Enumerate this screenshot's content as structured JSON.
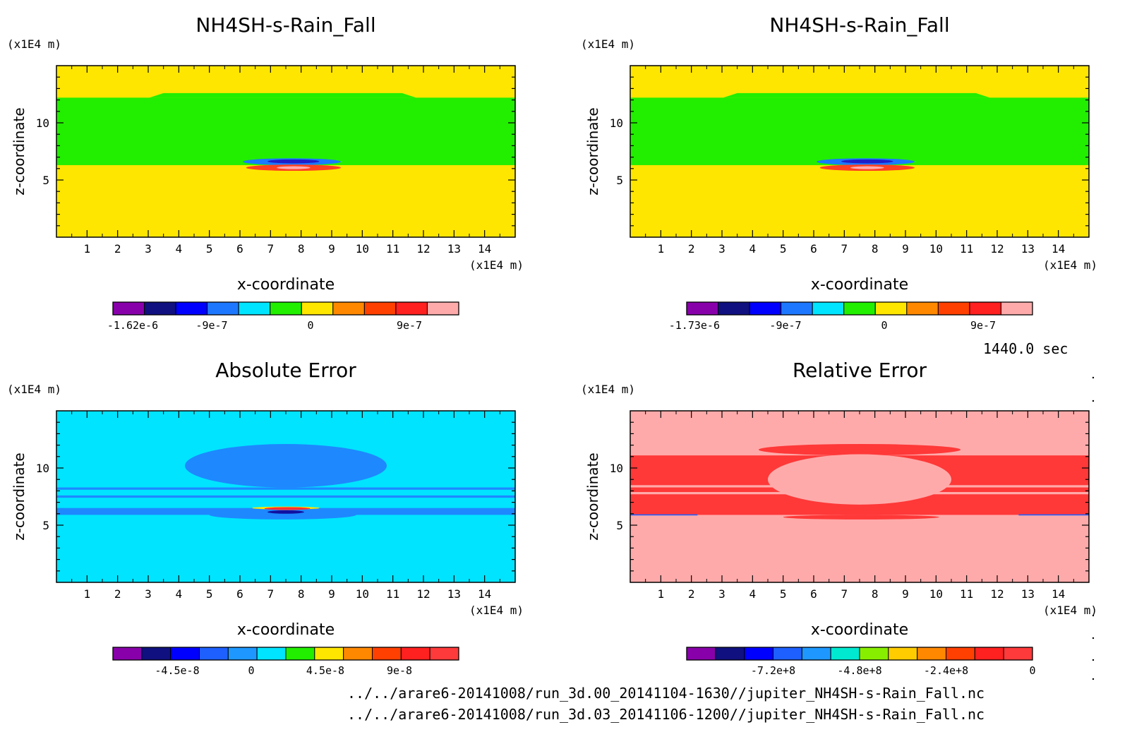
{
  "time_label": "1440.0 sec",
  "files": [
    "../../arare6-20141008/run_3d.00_20141104-1630//jupiter_NH4SH-s-Rain_Fall.nc",
    "../../arare6-20141008/run_3d.03_20141106-1200//jupiter_NH4SH-s-Rain_Fall.nc"
  ],
  "chart_data": [
    {
      "type": "heatmap",
      "title": "NH4SH-s-Rain_Fall",
      "xlabel": "x-coordinate",
      "ylabel": "z-coordinate",
      "x_unit": "(x1E4 m)",
      "y_unit": "(x1E4 m)",
      "xlim": [
        0,
        15
      ],
      "ylim": [
        0,
        15
      ],
      "x_ticks": [
        1,
        2,
        3,
        4,
        5,
        6,
        7,
        8,
        9,
        10,
        11,
        12,
        13,
        14
      ],
      "y_ticks": [
        5,
        10
      ],
      "background": "#ffe600",
      "regions": [
        {
          "kind": "band",
          "color": "#22ee00",
          "x": [
            0,
            15
          ],
          "y": [
            6.3,
            12.2
          ],
          "top_bump": {
            "x": [
              3.5,
              11.3
            ],
            "y": 12.6
          }
        },
        {
          "kind": "blob",
          "color": "#1a7aff",
          "x": [
            6.1,
            9.3
          ],
          "y": [
            6.3,
            6.9
          ]
        },
        {
          "kind": "blob",
          "color": "#1e1ec8",
          "x": [
            6.9,
            8.6
          ],
          "y": [
            6.45,
            6.8
          ]
        },
        {
          "kind": "blob",
          "color": "#ff4020",
          "x": [
            6.2,
            9.3
          ],
          "y": [
            5.8,
            6.35
          ]
        },
        {
          "kind": "blob",
          "color": "#ffaaaa",
          "x": [
            7.2,
            8.3
          ],
          "y": [
            5.95,
            6.2
          ]
        }
      ],
      "colorbar": {
        "colors": [
          "#8800aa",
          "#101080",
          "#0000ff",
          "#1e78ff",
          "#00e4ff",
          "#22ee00",
          "#ffe600",
          "#ff8800",
          "#ff4000",
          "#ff2020",
          "#ffaaaa"
        ],
        "labels": [
          "-1.62e-6",
          "-9e-7",
          "0",
          "9e-7"
        ],
        "label_values": [
          -1.62e-06,
          -9e-07,
          0,
          9e-07
        ],
        "vmin": -1.8e-06,
        "vmax": 1.35e-06
      }
    },
    {
      "type": "heatmap",
      "title": "NH4SH-s-Rain_Fall",
      "xlabel": "x-coordinate",
      "ylabel": "z-coordinate",
      "x_unit": "(x1E4 m)",
      "y_unit": "(x1E4 m)",
      "xlim": [
        0,
        15
      ],
      "ylim": [
        0,
        15
      ],
      "x_ticks": [
        1,
        2,
        3,
        4,
        5,
        6,
        7,
        8,
        9,
        10,
        11,
        12,
        13,
        14
      ],
      "y_ticks": [
        5,
        10
      ],
      "background": "#ffe600",
      "regions": [
        {
          "kind": "band",
          "color": "#22ee00",
          "x": [
            0,
            15
          ],
          "y": [
            6.3,
            12.2
          ],
          "top_bump": {
            "x": [
              3.5,
              11.3
            ],
            "y": 12.6
          }
        },
        {
          "kind": "blob",
          "color": "#1a7aff",
          "x": [
            6.1,
            9.3
          ],
          "y": [
            6.3,
            6.9
          ]
        },
        {
          "kind": "blob",
          "color": "#1e1ec8",
          "x": [
            6.9,
            8.6
          ],
          "y": [
            6.45,
            6.8
          ]
        },
        {
          "kind": "blob",
          "color": "#ff4020",
          "x": [
            6.2,
            9.3
          ],
          "y": [
            5.8,
            6.35
          ]
        },
        {
          "kind": "blob",
          "color": "#ffaaaa",
          "x": [
            7.2,
            8.3
          ],
          "y": [
            5.95,
            6.2
          ]
        }
      ],
      "colorbar": {
        "colors": [
          "#8800aa",
          "#101080",
          "#0000ff",
          "#1e78ff",
          "#00e4ff",
          "#22ee00",
          "#ffe600",
          "#ff8800",
          "#ff4000",
          "#ff2020",
          "#ffaaaa"
        ],
        "labels": [
          "-1.73e-6",
          "-9e-7",
          "0",
          "9e-7"
        ],
        "label_values": [
          -1.73e-06,
          -9e-07,
          0,
          9e-07
        ],
        "vmin": -1.8e-06,
        "vmax": 1.35e-06
      }
    },
    {
      "type": "heatmap",
      "title": "Absolute Error",
      "xlabel": "x-coordinate",
      "ylabel": "z-coordinate",
      "x_unit": "(x1E4 m)",
      "y_unit": "(x1E4 m)",
      "xlim": [
        0,
        15
      ],
      "ylim": [
        0,
        15
      ],
      "x_ticks": [
        1,
        2,
        3,
        4,
        5,
        6,
        7,
        8,
        9,
        10,
        11,
        12,
        13,
        14
      ],
      "y_ticks": [
        5,
        10
      ],
      "background": "#00e4ff",
      "regions": [
        {
          "kind": "band",
          "color": "#1e88ff",
          "x": [
            0,
            15
          ],
          "y": [
            8.1,
            8.3
          ]
        },
        {
          "kind": "band",
          "color": "#1e88ff",
          "x": [
            0,
            15
          ],
          "y": [
            7.4,
            7.6
          ]
        },
        {
          "kind": "band",
          "color": "#1e88ff",
          "x": [
            0,
            15
          ],
          "y": [
            5.9,
            6.5
          ]
        },
        {
          "kind": "blob",
          "color": "#1e88ff",
          "x": [
            4.2,
            10.8
          ],
          "y": [
            8.3,
            12.1
          ]
        },
        {
          "kind": "blob",
          "color": "#1e88ff",
          "x": [
            5.0,
            9.8
          ],
          "y": [
            5.5,
            6.3
          ]
        },
        {
          "kind": "blob",
          "color": "#ffe600",
          "x": [
            6.4,
            8.6
          ],
          "y": [
            6.4,
            6.6
          ]
        },
        {
          "kind": "blob",
          "color": "#ff3030",
          "x": [
            6.8,
            8.3
          ],
          "y": [
            6.35,
            6.55
          ]
        },
        {
          "kind": "blob",
          "color": "#1010a0",
          "x": [
            6.9,
            8.1
          ],
          "y": [
            6.0,
            6.3
          ]
        }
      ],
      "colorbar": {
        "colors": [
          "#8800aa",
          "#101080",
          "#0000ff",
          "#1e60ff",
          "#1e98ff",
          "#00e4ff",
          "#22ee00",
          "#ffe600",
          "#ff8800",
          "#ff4000",
          "#ff2020",
          "#ff3a3a"
        ],
        "labels": [
          "-4.5e-8",
          "0",
          "4.5e-8",
          "9e-8"
        ],
        "label_values": [
          -4.5e-08,
          0,
          4.5e-08,
          9e-08
        ],
        "vmin": -8.4e-08,
        "vmax": 1.26e-07
      }
    },
    {
      "type": "heatmap",
      "title": "Relative Error",
      "xlabel": "x-coordinate",
      "ylabel": "z-coordinate",
      "x_unit": "(x1E4 m)",
      "y_unit": "(x1E4 m)",
      "xlim": [
        0,
        15
      ],
      "ylim": [
        0,
        15
      ],
      "x_ticks": [
        1,
        2,
        3,
        4,
        5,
        6,
        7,
        8,
        9,
        10,
        11,
        12,
        13,
        14
      ],
      "y_ticks": [
        5,
        10
      ],
      "background": "#ffaaaa",
      "regions": [
        {
          "kind": "band",
          "color": "#ff3838",
          "x": [
            0,
            15
          ],
          "y": [
            5.9,
            11.1
          ]
        },
        {
          "kind": "band",
          "color": "#ffaaaa",
          "x": [
            0,
            15
          ],
          "y": [
            7.7,
            7.9
          ]
        },
        {
          "kind": "band",
          "color": "#ffaaaa",
          "x": [
            0,
            15
          ],
          "y": [
            8.3,
            8.5
          ]
        },
        {
          "kind": "blob",
          "color": "#ff3838",
          "x": [
            4.2,
            10.8
          ],
          "y": [
            11.1,
            12.1
          ]
        },
        {
          "kind": "blob",
          "color": "#ff3838",
          "x": [
            5.0,
            10.1
          ],
          "y": [
            5.5,
            5.9
          ]
        },
        {
          "kind": "blob",
          "color": "#ffaaaa",
          "x": [
            4.5,
            10.5
          ],
          "y": [
            6.8,
            11.2
          ]
        },
        {
          "kind": "band",
          "color": "#1e60ff",
          "x": [
            0,
            2.2
          ],
          "y": [
            5.85,
            5.95
          ]
        },
        {
          "kind": "band",
          "color": "#1e60ff",
          "x": [
            12.7,
            15
          ],
          "y": [
            5.85,
            5.95
          ]
        }
      ],
      "colorbar": {
        "colors": [
          "#8800aa",
          "#101080",
          "#0000ff",
          "#1e60ff",
          "#1e98ff",
          "#00e8d0",
          "#88ee00",
          "#ffcc00",
          "#ff8800",
          "#ff4000",
          "#ff2020",
          "#ff3a3a"
        ],
        "labels": [
          "-7.2e+8",
          "-4.8e+8",
          "-2.4e+8",
          "0"
        ],
        "label_values": [
          -720000000.0,
          -480000000.0,
          -240000000.0,
          0
        ],
        "vmin": -960000000.0,
        "vmax": 0
      }
    }
  ]
}
